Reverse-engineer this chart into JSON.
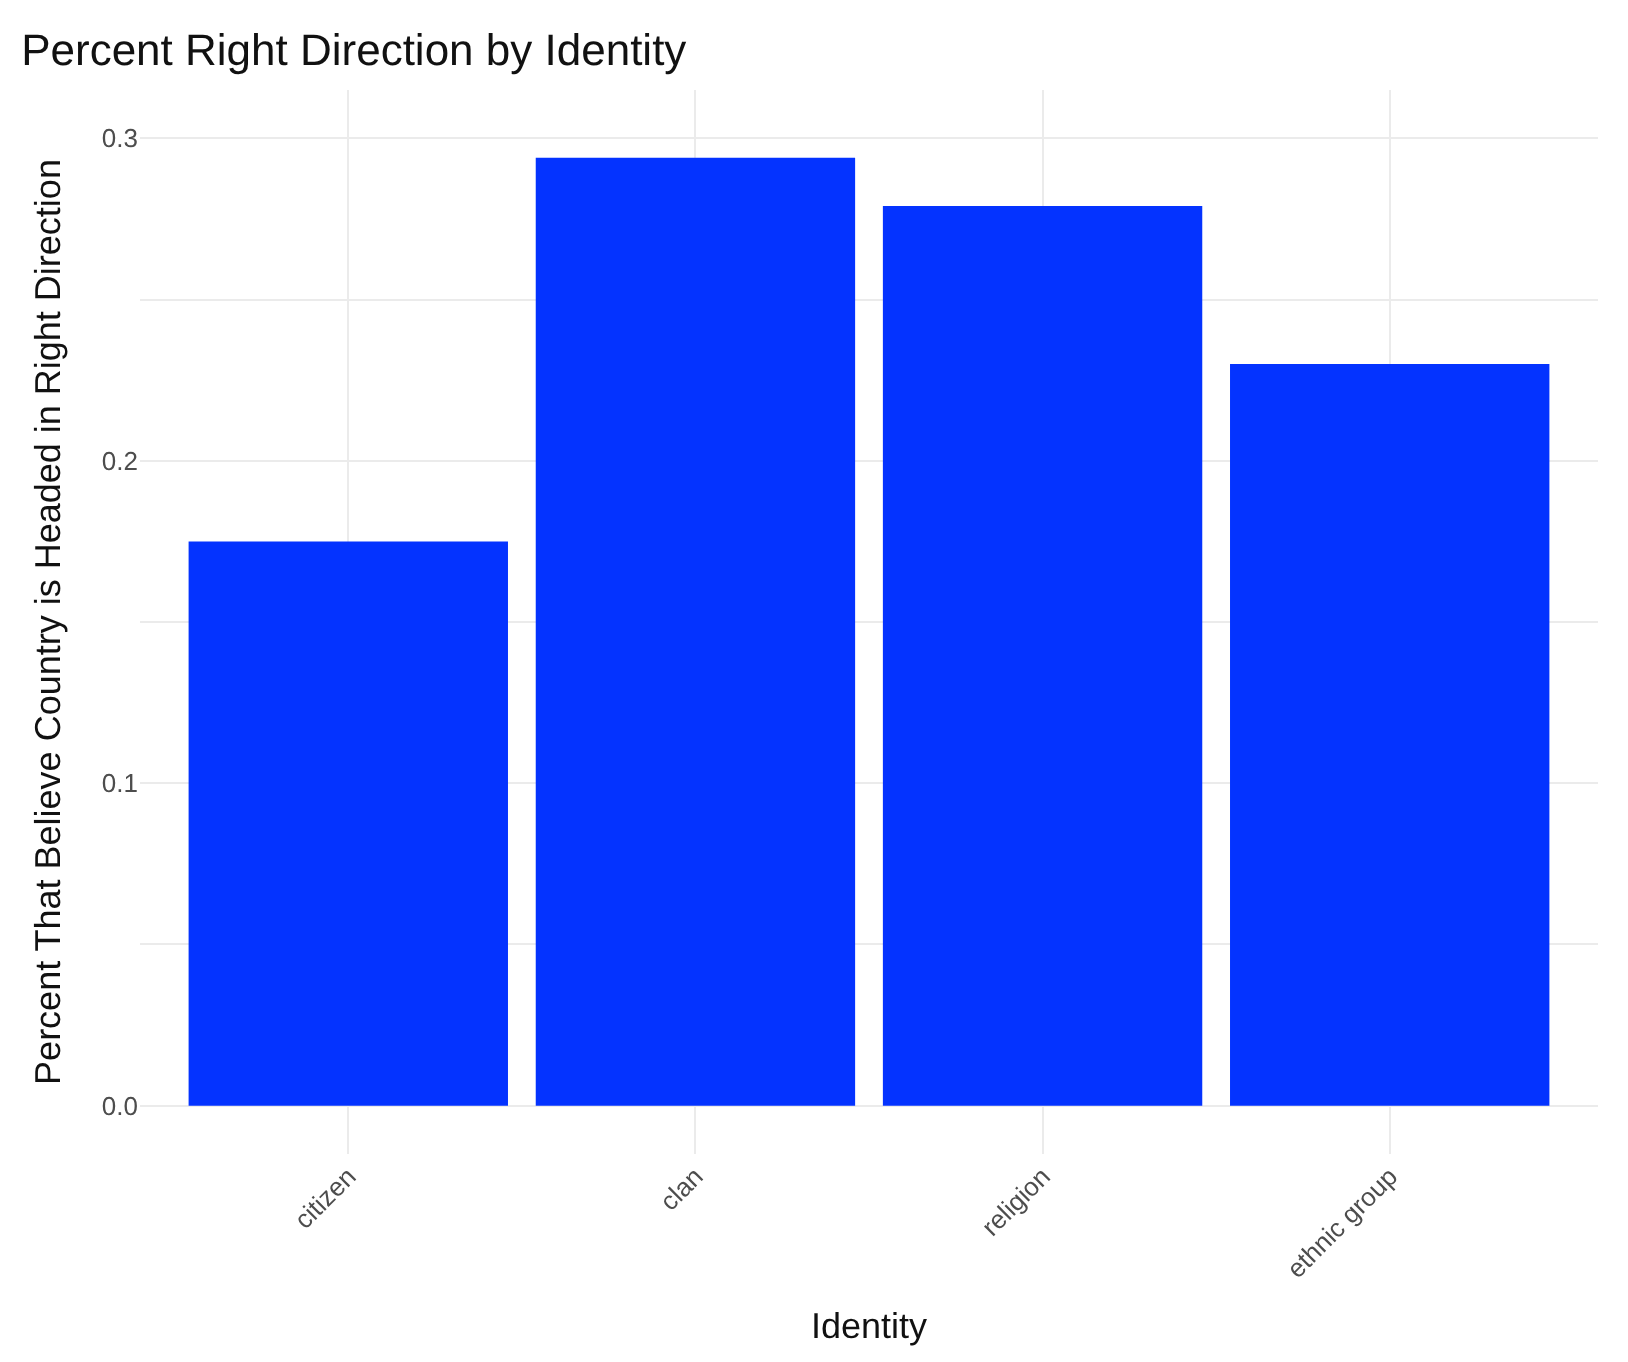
{
  "chart_data": {
    "type": "bar",
    "title": "Percent Right Direction by Identity",
    "xlabel": "Identity",
    "ylabel": "Percent That Believe Country is Headed in Right Direction",
    "categories": [
      "citizen",
      "clan",
      "religion",
      "ethnic group"
    ],
    "values": [
      0.175,
      0.294,
      0.279,
      0.23
    ],
    "color": "#0433ff",
    "ylim": [
      -0.015,
      0.315
    ],
    "yticks": [
      {
        "value": 0,
        "label": "0.0"
      },
      {
        "value": 0.05,
        "label": null
      },
      0.1,
      {
        "value": 0.15,
        "label": null
      },
      0.2,
      {
        "value": 0.25,
        "label": null
      },
      0.3
    ],
    "grid": true
  }
}
